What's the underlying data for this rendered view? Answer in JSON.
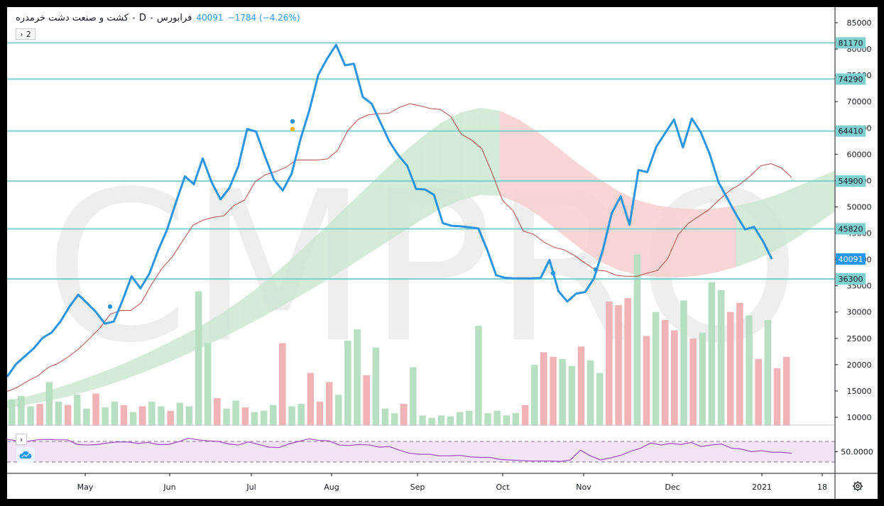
{
  "legend": {
    "symbol": "کشت و صنعت دشت خرمدره",
    "interval": "D",
    "exchange": "فرابورس",
    "last": "40091",
    "change": "−1784 (−4.26%)"
  },
  "collapse_label": "2",
  "watermark": "CMPRO",
  "colors": {
    "price": "#2b95e3",
    "baseline": "#b5514a",
    "cloud_bull": "#cde8d2",
    "cloud_bear": "#f9d0d0",
    "hline": "#7fd0cf",
    "vol_up": "#b7dfc2",
    "vol_down": "#f2b3b6",
    "rsi_line": "#a24cc0",
    "rsi_band": "#f1e4f5",
    "last_label_bg": "#2196f3"
  },
  "chart_data": {
    "type": "line",
    "price_axis": {
      "ticks": [
        85000,
        80000,
        75000,
        70000,
        65000,
        60000,
        55000,
        50000,
        45000,
        40000,
        35000,
        30000,
        25000,
        20000,
        15000,
        10000
      ]
    },
    "level_labels": [
      81170,
      74290,
      64410,
      54900,
      45820,
      36300
    ],
    "last_price": 40091,
    "time_axis": [
      "May",
      "Jun",
      "Jul",
      "Aug",
      "Sep",
      "Oct",
      "Nov",
      "Dec",
      "2021",
      "18"
    ],
    "price_series": [
      17700,
      20100,
      21600,
      23100,
      25100,
      26100,
      28200,
      31000,
      33300,
      31700,
      30000,
      27800,
      28200,
      32300,
      36800,
      34500,
      37300,
      41800,
      45700,
      50900,
      55800,
      54300,
      59200,
      54700,
      51400,
      53600,
      57700,
      64800,
      64300,
      59600,
      55200,
      53100,
      56300,
      62900,
      68400,
      75100,
      78200,
      80800,
      76900,
      77200,
      70900,
      69600,
      66000,
      62400,
      59800,
      57800,
      53400,
      53300,
      52300,
      46900,
      46400,
      46300,
      46100,
      45900,
      41800,
      37000,
      36500,
      36400,
      36400,
      36400,
      36500,
      39900,
      34000,
      32000,
      33500,
      33800,
      36400,
      41800,
      48800,
      52000,
      46600,
      57000,
      56600,
      61400,
      64000,
      66600,
      61300,
      66800,
      64200,
      60100,
      54700,
      51600,
      48500,
      45700,
      46200,
      43500,
      40091
    ],
    "baseline_series": [
      14900,
      15700,
      16900,
      17900,
      19500,
      20300,
      21600,
      23100,
      25000,
      27000,
      29600,
      30300,
      30300,
      31800,
      35300,
      38300,
      40500,
      43500,
      46500,
      47500,
      48000,
      48300,
      50300,
      51300,
      54700,
      56100,
      56700,
      57500,
      58900,
      58900,
      58900,
      59100,
      60700,
      64500,
      66600,
      67500,
      67700,
      67800,
      68900,
      69600,
      69200,
      68700,
      68500,
      67100,
      63800,
      62700,
      61000,
      56300,
      51200,
      49300,
      45400,
      44800,
      43300,
      42300,
      41800,
      40700,
      39300,
      38000,
      37800,
      37000,
      36800,
      36800,
      37400,
      37900,
      40200,
      44700,
      46900,
      48200,
      49500,
      51400,
      53100,
      54300,
      55900,
      57800,
      58200,
      57400,
      55600
    ],
    "cloud_upper": [
      13100,
      13900,
      14900,
      16100,
      17400,
      18800,
      20300,
      22000,
      23800,
      25700,
      27700,
      30000,
      32600,
      35500,
      38600,
      42100,
      45600,
      49200,
      52800,
      56400,
      59900,
      63100,
      65900,
      67900,
      68800,
      68200,
      66500,
      64000,
      61100,
      58100,
      55400,
      53000,
      51200,
      50200,
      49700,
      49500,
      49700,
      50200,
      51000,
      52200,
      53700,
      55300,
      56800
    ],
    "cloud_lower": [
      11800,
      12400,
      13100,
      13900,
      14900,
      16000,
      17300,
      18700,
      20200,
      21800,
      23500,
      25300,
      27200,
      29200,
      31300,
      33400,
      35600,
      37900,
      40300,
      42700,
      45100,
      47500,
      49600,
      51300,
      52300,
      52100,
      50700,
      48300,
      45300,
      42300,
      39800,
      38000,
      37100,
      36700,
      36600,
      36900,
      37600,
      38600,
      40000,
      41800,
      44000,
      46500,
      49200
    ],
    "cloud_sign": [
      1,
      1,
      1,
      1,
      1,
      1,
      1,
      1,
      1,
      1,
      1,
      1,
      1,
      1,
      1,
      1,
      1,
      1,
      1,
      1,
      1,
      1,
      1,
      1,
      1,
      -1,
      -1,
      -1,
      -1,
      -1,
      -1,
      -1,
      -1,
      -1,
      -1,
      -1,
      -1,
      1,
      1,
      1,
      1,
      1,
      1
    ],
    "volume": [
      2300,
      2600,
      1700,
      1900,
      3800,
      2100,
      1800,
      2700,
      1500,
      2800,
      1600,
      2100,
      1800,
      1200,
      1700,
      2100,
      1700,
      1300,
      2000,
      1700,
      11700,
      7200,
      2400,
      1500,
      2200,
      1600,
      1200,
      1300,
      1800,
      7200,
      1700,
      1900,
      4600,
      2100,
      3800,
      2700,
      7400,
      8400,
      4400,
      6800,
      1500,
      1100,
      1900,
      5100,
      900,
      700,
      900,
      800,
      1200,
      1300,
      8700,
      1100,
      1300,
      900,
      1100,
      1800,
      5300,
      6400,
      6000,
      5800,
      5200,
      6900,
      5700,
      4600,
      10800,
      10500,
      11100,
      14900,
      7800,
      9900,
      9200,
      8300,
      10900,
      7600,
      8100,
      12500,
      11800,
      9900,
      10700,
      9600,
      5800,
      9200,
      5000,
      6000
    ],
    "volume_dir": [
      1,
      1,
      1,
      -1,
      1,
      1,
      -1,
      1,
      1,
      -1,
      1,
      1,
      -1,
      1,
      -1,
      1,
      1,
      -1,
      1,
      1,
      1,
      1,
      -1,
      1,
      1,
      -1,
      1,
      1,
      1,
      -1,
      1,
      1,
      -1,
      -1,
      -1,
      1,
      1,
      1,
      -1,
      1,
      1,
      1,
      -1,
      1,
      1,
      1,
      1,
      1,
      1,
      1,
      1,
      1,
      1,
      1,
      1,
      -1,
      1,
      -1,
      -1,
      1,
      1,
      -1,
      1,
      1,
      -1,
      -1,
      -1,
      1,
      -1,
      1,
      -1,
      -1,
      1,
      -1,
      1,
      1,
      1,
      -1,
      -1,
      1,
      -1,
      1,
      -1,
      -1
    ],
    "rsi_label": "50.0000",
    "rsi_series": [
      74,
      71,
      70,
      73,
      74,
      73,
      73,
      64,
      63,
      64,
      67,
      69,
      69,
      66,
      68,
      64,
      64,
      69,
      76,
      73,
      71,
      70,
      65,
      63,
      69,
      64,
      59,
      58,
      65,
      70,
      75,
      72,
      71,
      63,
      62,
      64,
      63,
      59,
      60,
      53,
      47,
      45,
      45,
      42,
      42,
      43,
      40,
      39,
      39,
      35,
      34,
      33,
      32,
      32,
      32,
      31,
      34,
      53,
      42,
      34,
      38,
      43,
      51,
      57,
      67,
      63,
      66,
      64,
      68,
      60,
      63,
      65,
      57,
      55,
      50,
      52,
      49,
      49,
      47
    ]
  }
}
